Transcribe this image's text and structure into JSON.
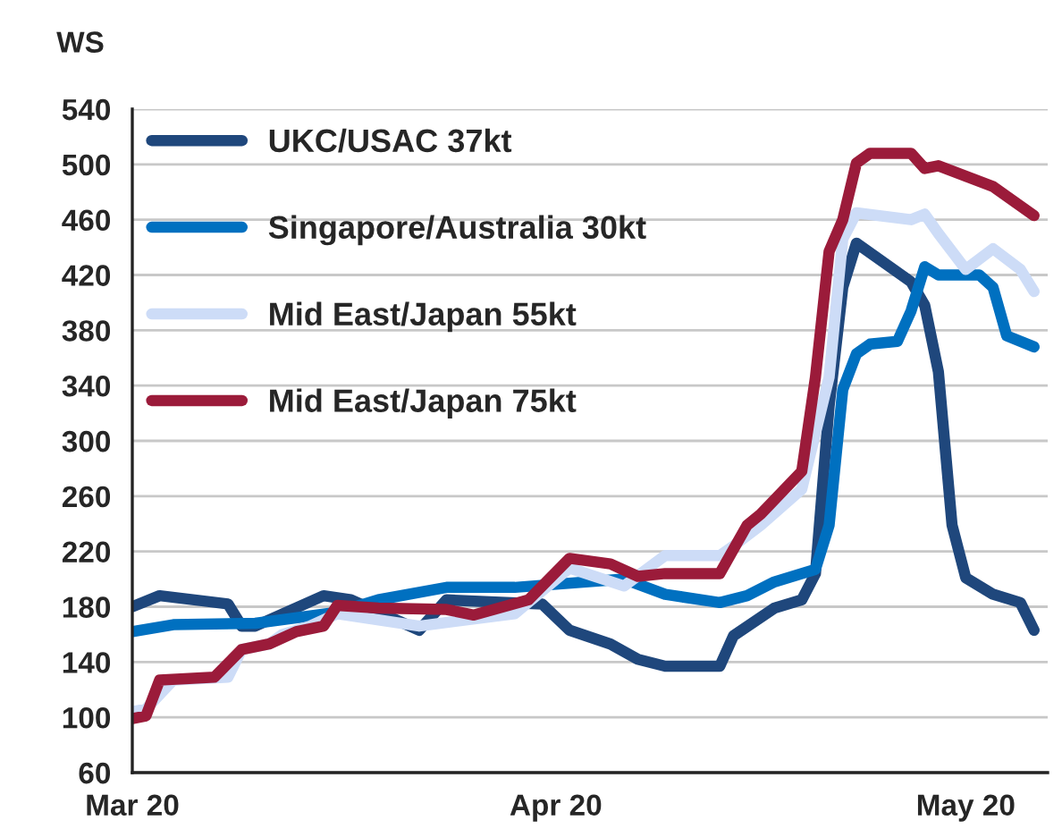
{
  "chart_data": {
    "type": "line",
    "ylabel": "WS",
    "xlim": [
      "2020-03-01",
      "2020-05-07"
    ],
    "xticks": [
      {
        "value": "2020-03-01",
        "label": "Mar 20"
      },
      {
        "value": "2020-04-01",
        "label": "Apr 20"
      },
      {
        "value": "2020-05-01",
        "label": "May 20"
      }
    ],
    "ylim": [
      60,
      540
    ],
    "yticks": [
      60,
      100,
      140,
      180,
      220,
      260,
      300,
      340,
      380,
      420,
      460,
      500,
      540
    ],
    "grid": "y",
    "legend": "top left",
    "marker": "none",
    "line_style": "solid",
    "series": [
      {
        "name": "UKC/USAC 37kt",
        "color": "#1f477c",
        "x": [
          "2020-03-01",
          "2020-03-03",
          "2020-03-08",
          "2020-03-09",
          "2020-03-10",
          "2020-03-15",
          "2020-03-17",
          "2020-03-22",
          "2020-03-24",
          "2020-03-31",
          "2020-04-02",
          "2020-04-05",
          "2020-04-07",
          "2020-04-09",
          "2020-04-13",
          "2020-04-14",
          "2020-04-17",
          "2020-04-19",
          "2020-04-20",
          "2020-04-21",
          "2020-04-22",
          "2020-04-23",
          "2020-04-27",
          "2020-04-28",
          "2020-04-29",
          "2020-04-30",
          "2020-05-01",
          "2020-05-03",
          "2020-05-05",
          "2020-05-06"
        ],
        "values": [
          180,
          188,
          182,
          166,
          166,
          188,
          185,
          163,
          185,
          182,
          163,
          153,
          142,
          137,
          137,
          159,
          179,
          185,
          204,
          325,
          411,
          443,
          415,
          398,
          350,
          239,
          201,
          189,
          183,
          163
        ]
      },
      {
        "name": "Singapore/Australia 30kt",
        "color": "#0070c0",
        "x": [
          "2020-03-01",
          "2020-03-04",
          "2020-03-10",
          "2020-03-16",
          "2020-03-19",
          "2020-03-24",
          "2020-03-29",
          "2020-04-06",
          "2020-04-09",
          "2020-04-13",
          "2020-04-15",
          "2020-04-17",
          "2020-04-20",
          "2020-04-21",
          "2020-04-22",
          "2020-04-23",
          "2020-04-24",
          "2020-04-26",
          "2020-04-27",
          "2020-04-28",
          "2020-04-29",
          "2020-05-02",
          "2020-05-03",
          "2020-05-04",
          "2020-05-06"
        ],
        "values": [
          162,
          167,
          168,
          176,
          185,
          194,
          194,
          200,
          189,
          183,
          188,
          198,
          207,
          239,
          337,
          363,
          370,
          372,
          394,
          426,
          420,
          420,
          411,
          376,
          368
        ]
      },
      {
        "name": "Mid East/Japan 55kt",
        "color": "#cddcf7",
        "x": [
          "2020-03-01",
          "2020-03-02",
          "2020-03-04",
          "2020-03-08",
          "2020-03-09",
          "2020-03-11",
          "2020-03-12",
          "2020-03-14",
          "2020-03-16",
          "2020-03-22",
          "2020-03-29",
          "2020-04-02",
          "2020-04-06",
          "2020-04-09",
          "2020-04-13",
          "2020-04-14",
          "2020-04-16",
          "2020-04-19",
          "2020-04-21",
          "2020-04-22",
          "2020-04-23",
          "2020-04-27",
          "2020-04-28",
          "2020-04-29",
          "2020-05-01",
          "2020-05-03",
          "2020-05-05",
          "2020-05-06"
        ],
        "values": [
          104,
          106,
          127,
          129,
          149,
          153,
          160,
          166,
          175,
          166,
          175,
          208,
          195,
          217,
          217,
          224,
          239,
          265,
          346,
          446,
          465,
          460,
          464,
          450,
          424,
          439,
          424,
          408
        ]
      },
      {
        "name": "Mid East/Japan 75kt",
        "color": "#9b1b3a",
        "x": [
          "2020-03-01",
          "2020-03-02",
          "2020-03-03",
          "2020-03-07",
          "2020-03-09",
          "2020-03-11",
          "2020-03-13",
          "2020-03-15",
          "2020-03-16",
          "2020-03-19",
          "2020-03-24",
          "2020-03-26",
          "2020-03-30",
          "2020-04-02",
          "2020-04-05",
          "2020-04-07",
          "2020-04-09",
          "2020-04-13",
          "2020-04-15",
          "2020-04-16",
          "2020-04-19",
          "2020-04-20",
          "2020-04-21",
          "2020-04-22",
          "2020-04-23",
          "2020-04-24",
          "2020-04-27",
          "2020-04-28",
          "2020-04-29",
          "2020-05-03",
          "2020-05-06"
        ],
        "values": [
          99,
          101,
          127,
          129,
          149,
          153,
          162,
          166,
          181,
          179,
          178,
          174,
          185,
          215,
          211,
          202,
          204,
          204,
          239,
          247,
          278,
          346,
          437,
          460,
          501,
          508,
          508,
          497,
          499,
          484,
          463
        ]
      }
    ]
  }
}
